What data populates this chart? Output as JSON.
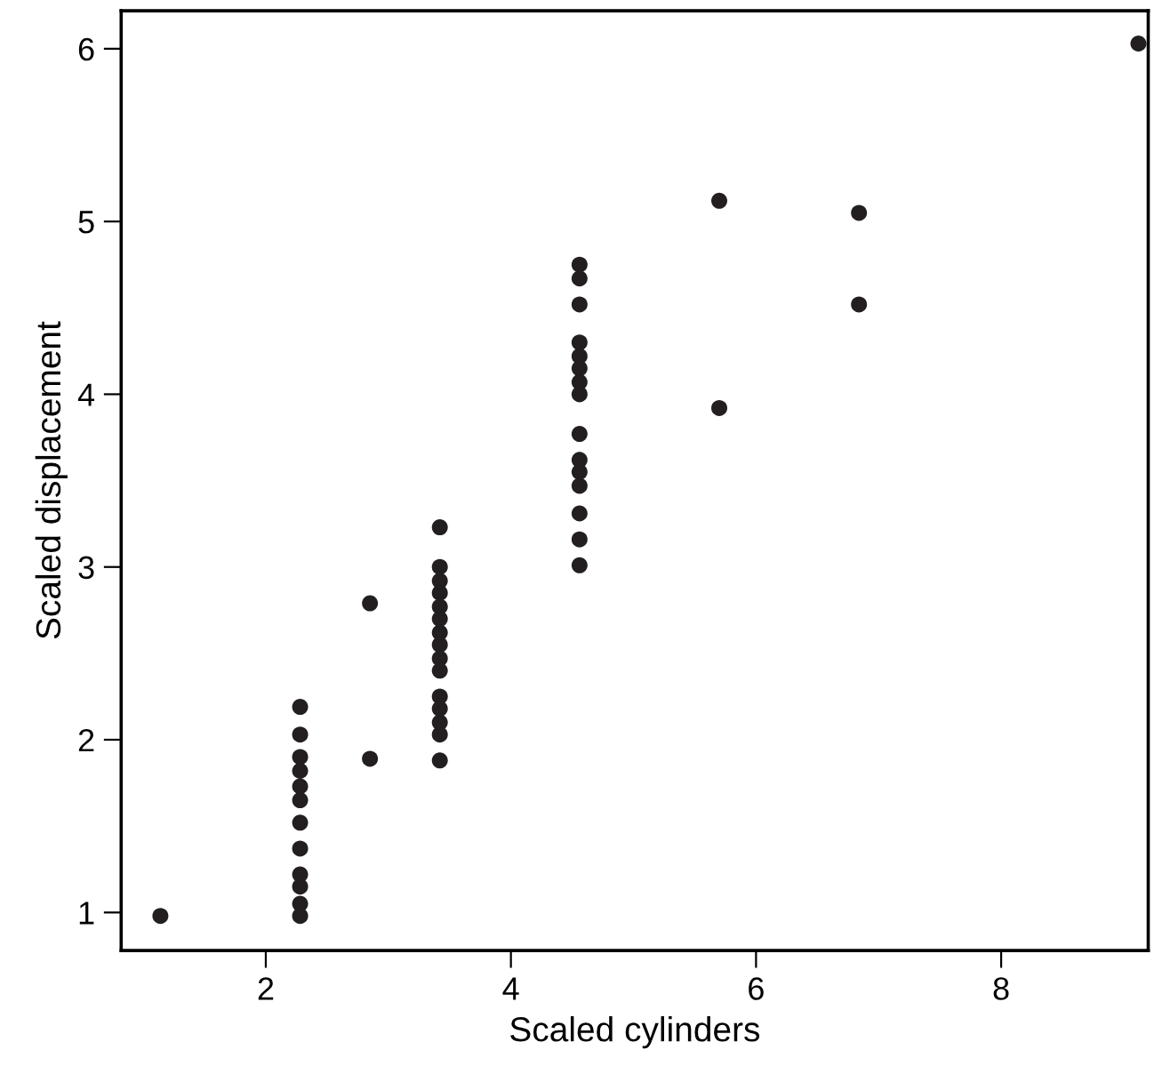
{
  "chart_data": {
    "type": "scatter",
    "xlabel": "Scaled cylinders",
    "ylabel": "Scaled displacement",
    "series": [
      {
        "color": "#231f20",
        "x": [
          1.14,
          2.28,
          2.28,
          2.28,
          2.28,
          2.28,
          2.28,
          2.28,
          2.28,
          2.28,
          2.28,
          2.28,
          2.28,
          2.85,
          2.85,
          3.42,
          3.42,
          3.42,
          3.42,
          3.42,
          3.42,
          3.42,
          3.42,
          3.42,
          3.42,
          3.42,
          3.42,
          3.42,
          3.42,
          3.42,
          4.56,
          4.56,
          4.56,
          4.56,
          4.56,
          4.56,
          4.56,
          4.56,
          4.56,
          4.56,
          4.56,
          4.56,
          4.56,
          4.56,
          4.56,
          5.7,
          5.7,
          6.84,
          6.84,
          9.12
        ],
        "values": [
          0.98,
          2.19,
          2.03,
          1.9,
          1.82,
          1.73,
          1.65,
          1.52,
          1.37,
          1.22,
          1.15,
          1.05,
          0.98,
          2.79,
          1.89,
          3.23,
          3.0,
          2.92,
          2.85,
          2.77,
          2.7,
          2.62,
          2.55,
          2.47,
          2.4,
          2.25,
          2.18,
          2.1,
          2.03,
          1.88,
          4.75,
          4.67,
          4.52,
          4.3,
          4.22,
          4.15,
          4.07,
          4.0,
          3.77,
          3.62,
          3.55,
          3.47,
          3.31,
          3.16,
          3.01,
          5.12,
          3.92,
          5.05,
          4.52,
          6.03
        ]
      }
    ],
    "marker": "circle",
    "grid": false,
    "xlim": [
      0.82,
      9.2
    ],
    "xticks": [
      2,
      4,
      6,
      8
    ],
    "ylim": [
      0.78,
      6.22
    ],
    "yticks": [
      1,
      2,
      3,
      4,
      5,
      6
    ]
  }
}
